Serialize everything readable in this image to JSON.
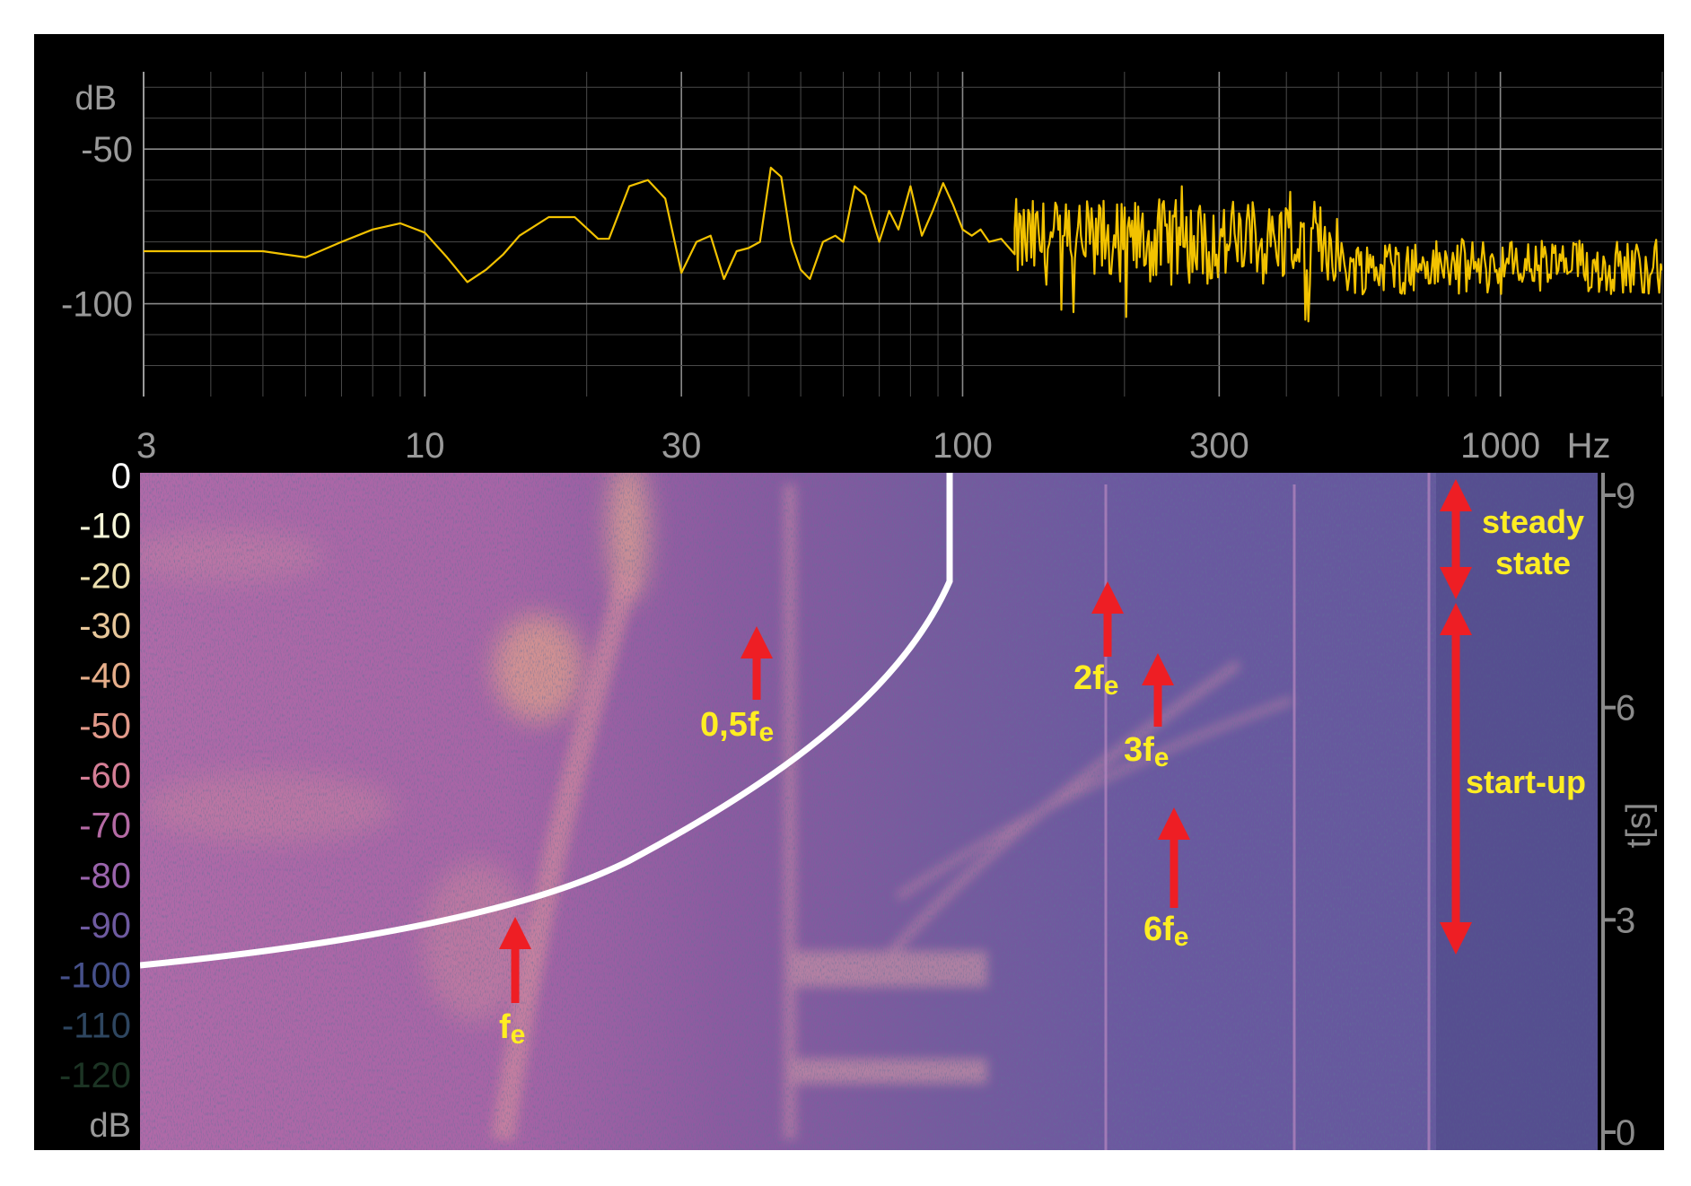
{
  "chart_data": [
    {
      "type": "line",
      "x_scale": "log",
      "y_unit": "dB",
      "x_unit": "Hz",
      "xlim": [
        3,
        2000
      ],
      "ylim": [
        -130,
        -25
      ],
      "grid": true,
      "x_ticks": [
        {
          "value": 3,
          "label": "3"
        },
        {
          "value": 10,
          "label": "10"
        },
        {
          "value": 30,
          "label": "30"
        },
        {
          "value": 100,
          "label": "100"
        },
        {
          "value": 300,
          "label": "300"
        },
        {
          "value": 1000,
          "label": "1000"
        }
      ],
      "y_ticks": [
        {
          "value": -50,
          "label": "-50"
        },
        {
          "value": -100,
          "label": "-100"
        }
      ],
      "series": [
        {
          "color": "#f2c200",
          "x": [
            3,
            4,
            5,
            6,
            7,
            8,
            9,
            10,
            11,
            12,
            13,
            14,
            15,
            17,
            19,
            21,
            22,
            24,
            26,
            28,
            30,
            32,
            34,
            36,
            38,
            40,
            42,
            44,
            46,
            48,
            50,
            52,
            55,
            58,
            60,
            63,
            66,
            70,
            73,
            76,
            80,
            84,
            88,
            92,
            96,
            100,
            104,
            108,
            112,
            118,
            125
          ],
          "y": [
            -83,
            -83,
            -83,
            -85,
            -80,
            -76,
            -74,
            -77,
            -85,
            -93,
            -89,
            -84,
            -78,
            -72,
            -72,
            -79,
            -79,
            -62,
            -60,
            -66,
            -90,
            -80,
            -78,
            -92,
            -83,
            -82,
            -80,
            -56,
            -59,
            -80,
            -89,
            -92,
            -80,
            -78,
            -80,
            -62,
            -65,
            -80,
            -70,
            -76,
            -62,
            -78,
            -70,
            -61,
            -68,
            -76,
            -78,
            -76,
            -80,
            -79,
            -84
          ]
        }
      ]
    },
    {
      "type": "heatmap",
      "x_scale": "log",
      "x_unit": "Hz",
      "y_label": "t[s]",
      "ylim": [
        0,
        9
      ],
      "y_ticks": [
        {
          "value": 0,
          "label": "0"
        },
        {
          "value": 3,
          "label": "3"
        },
        {
          "value": 6,
          "label": "6"
        },
        {
          "value": 9,
          "label": "9"
        }
      ],
      "color_scale": {
        "unit": "dB",
        "levels": [
          0,
          -10,
          -20,
          -30,
          -40,
          -50,
          -60,
          -70,
          -80,
          -90,
          -100,
          -110,
          -120
        ],
        "labels": [
          "0",
          "-10",
          "-20",
          "-30",
          "-40",
          "-50",
          "-60",
          "-70",
          "-80",
          "-90",
          "-100",
          "-110",
          "-120"
        ],
        "colors": [
          "#ffffff",
          "#f6f6d8",
          "#ecdfae",
          "#e8c79a",
          "#e6ae8a",
          "#e2998a",
          "#d47e96",
          "#b46aa4",
          "#9a64ac",
          "#6e5aa0",
          "#46508a",
          "#2e4660",
          "#1c3424"
        ]
      },
      "annotations": [
        {
          "label_main": "f",
          "label_sub": "e",
          "color": "#ffee22"
        },
        {
          "label_main": "0,5f",
          "label_sub": "e",
          "color": "#ffee22"
        },
        {
          "label_main": "2f",
          "label_sub": "e",
          "color": "#ffee22"
        },
        {
          "label_main": "3f",
          "label_sub": "e",
          "color": "#ffee22"
        },
        {
          "label_main": "6f",
          "label_sub": "e",
          "color": "#ffee22"
        },
        {
          "label_main": "steady",
          "label_sub": "state",
          "color": "#ffee22"
        },
        {
          "label_main": "start-up",
          "label_sub": "",
          "color": "#ffee22"
        }
      ]
    }
  ]
}
